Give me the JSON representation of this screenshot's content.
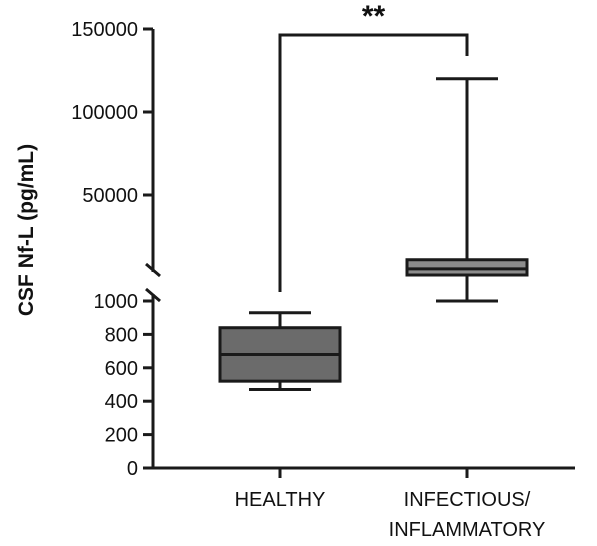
{
  "chart_data": {
    "type": "box",
    "ylabel": "CSF Nf-L (pg/mL)",
    "y_axis_broken": true,
    "segments": {
      "lower": {
        "ylim": [
          0,
          1000
        ],
        "ticks": [
          "0",
          "200",
          "400",
          "600",
          "800",
          "1000"
        ],
        "tick_values": [
          0,
          200,
          400,
          600,
          800,
          1000
        ]
      },
      "upper": {
        "ylim": [
          0,
          150000
        ],
        "ticks": [
          "50000",
          "100000",
          "150000"
        ],
        "tick_values": [
          50000,
          100000,
          150000
        ]
      }
    },
    "categories": [
      "HEALTHY",
      "INFECTIOUS/\nINFLAMMATORY"
    ],
    "boxes": [
      {
        "category": "HEALTHY",
        "min": 470,
        "q1": 520,
        "median": 680,
        "q3": 840,
        "max": 930,
        "color": "#6b6b6b"
      },
      {
        "category": "INFECTIOUS/\nINFLAMMATORY",
        "min": 1000,
        "q1": 1800,
        "median": 5500,
        "q3": 11000,
        "max": 120000,
        "color": "#8c8c8c"
      }
    ],
    "significance": {
      "label": "**",
      "between": [
        "HEALTHY",
        "INFECTIOUS/\nINFLAMMATORY"
      ]
    },
    "grid": false,
    "legend": "none"
  }
}
